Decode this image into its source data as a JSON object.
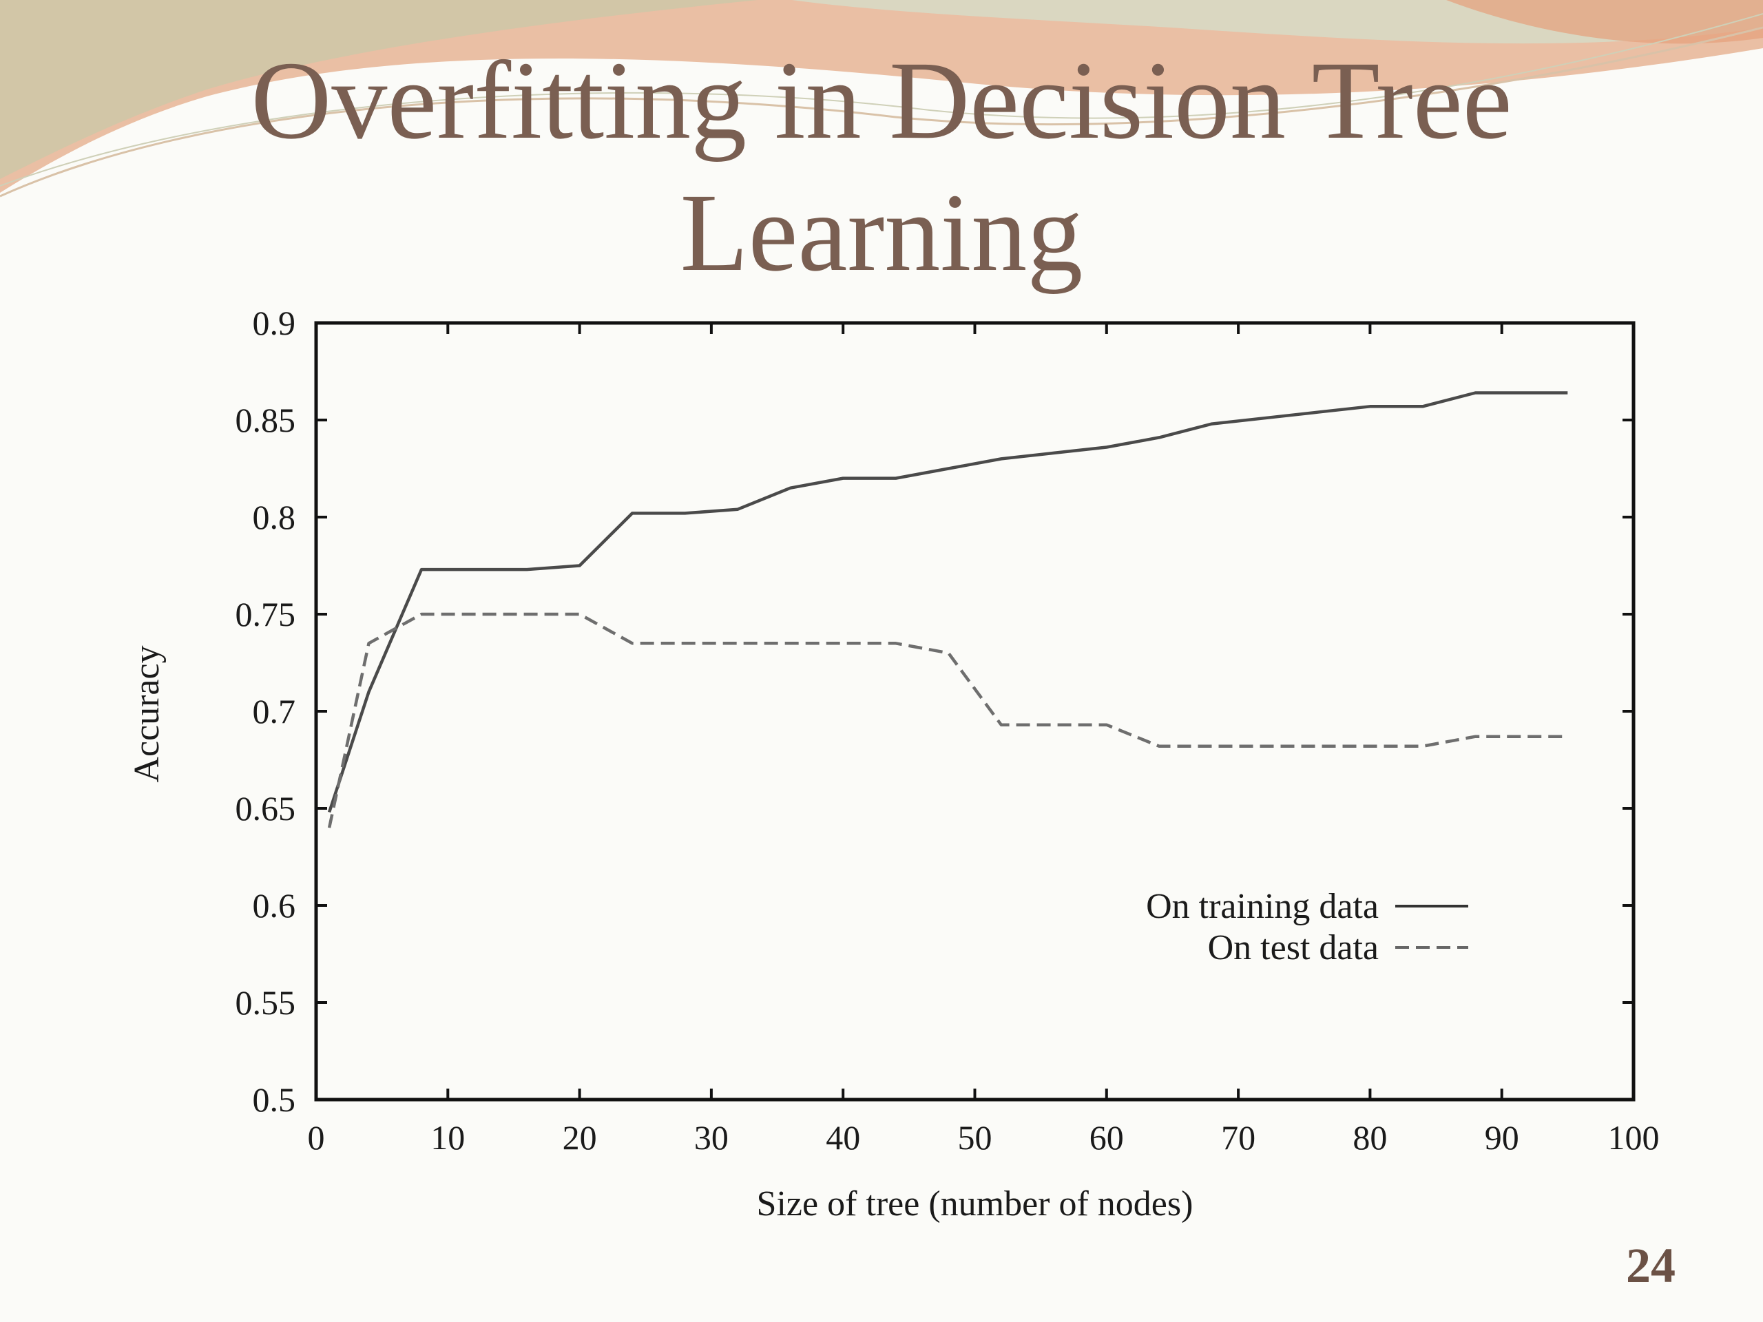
{
  "slide": {
    "title_line_1": "Overfitting in Decision Tree",
    "title_line_2": "Learning",
    "page_number": "24",
    "colors": {
      "title": "#7a5f52",
      "decor_peach": "#e2a98a",
      "decor_sage": "#c7cdb0"
    }
  },
  "chart_data": {
    "type": "line",
    "xlabel": "Size of tree (number of nodes)",
    "ylabel": "Accuracy",
    "xlim": [
      0,
      100
    ],
    "ylim": [
      0.5,
      0.9
    ],
    "x_ticks": [
      "0",
      "10",
      "20",
      "30",
      "40",
      "50",
      "60",
      "70",
      "80",
      "90",
      "100"
    ],
    "y_ticks": [
      "0.5",
      "0.55",
      "0.6",
      "0.65",
      "0.7",
      "0.75",
      "0.8",
      "0.85",
      "0.9"
    ],
    "grid": false,
    "legend_position": "lower-right",
    "series": [
      {
        "name": "On training data",
        "style": "solid",
        "x": [
          1,
          4,
          8,
          12,
          16,
          20,
          24,
          28,
          32,
          36,
          40,
          44,
          48,
          52,
          56,
          60,
          64,
          68,
          72,
          76,
          80,
          84,
          88,
          92,
          95
        ],
        "y": [
          0.648,
          0.71,
          0.773,
          0.773,
          0.773,
          0.775,
          0.802,
          0.802,
          0.804,
          0.815,
          0.82,
          0.82,
          0.825,
          0.83,
          0.833,
          0.836,
          0.841,
          0.848,
          0.851,
          0.854,
          0.857,
          0.857,
          0.864,
          0.864,
          0.864
        ]
      },
      {
        "name": "On test data",
        "style": "dashed",
        "x": [
          1,
          4,
          8,
          12,
          16,
          20,
          24,
          28,
          32,
          36,
          40,
          44,
          48,
          52,
          56,
          60,
          64,
          68,
          72,
          76,
          80,
          84,
          88,
          92,
          95
        ],
        "y": [
          0.64,
          0.735,
          0.75,
          0.75,
          0.75,
          0.75,
          0.735,
          0.735,
          0.735,
          0.735,
          0.735,
          0.735,
          0.73,
          0.693,
          0.693,
          0.693,
          0.682,
          0.682,
          0.682,
          0.682,
          0.682,
          0.682,
          0.687,
          0.687,
          0.687
        ]
      }
    ]
  }
}
